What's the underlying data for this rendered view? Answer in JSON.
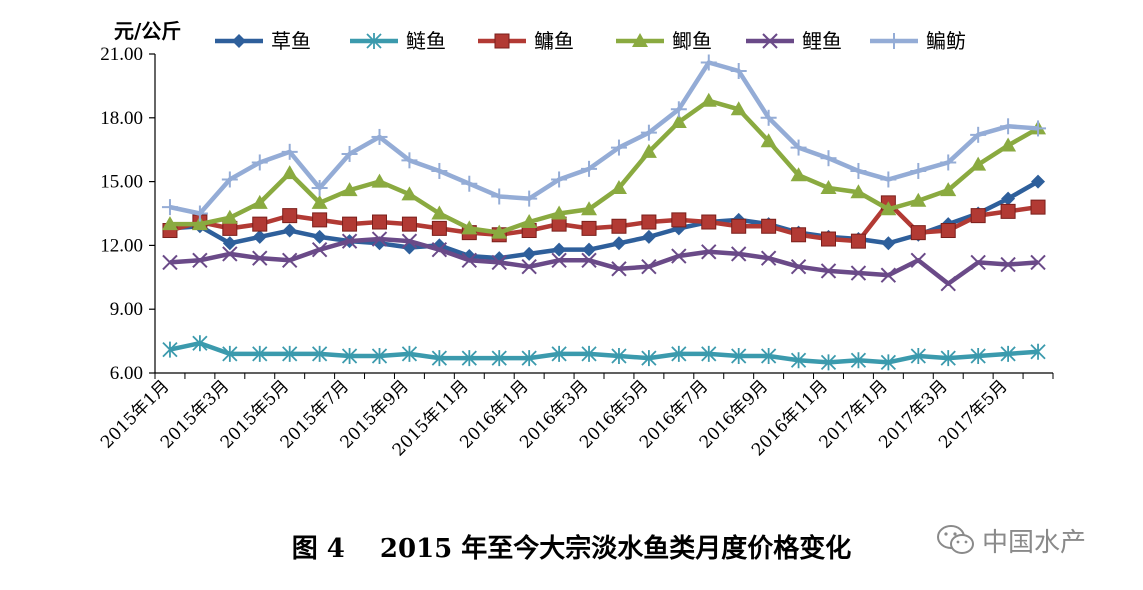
{
  "chart_data": {
    "type": "line",
    "unit_label": "元/公斤",
    "ylim": [
      6.0,
      21.0
    ],
    "yticks": [
      "21.00",
      "18.00",
      "15.00",
      "12.00",
      "9.00",
      "6.00"
    ],
    "ytick_values": [
      21,
      18,
      15,
      12,
      9,
      6
    ],
    "grid": false,
    "legend": "top",
    "x": [
      "2015年1月",
      "2015年2月",
      "2015年3月",
      "2015年4月",
      "2015年5月",
      "2015年6月",
      "2015年7月",
      "2015年8月",
      "2015年9月",
      "2015年10月",
      "2015年11月",
      "2015年12月",
      "2016年1月",
      "2016年2月",
      "2016年3月",
      "2016年4月",
      "2016年5月",
      "2016年6月",
      "2016年7月",
      "2016年8月",
      "2016年9月",
      "2016年10月",
      "2016年11月",
      "2016年12月",
      "2017年1月",
      "2017年2月",
      "2017年3月",
      "2017年4月",
      "2017年5月",
      "2017年6月"
    ],
    "xtick_labels": [
      "2015年1月",
      "2015年3月",
      "2015年5月",
      "2015年7月",
      "2015年9月",
      "2015年11月",
      "2016年1月",
      "2016年3月",
      "2016年5月",
      "2016年7月",
      "2016年9月",
      "2016年11月",
      "2017年1月",
      "2017年3月",
      "2017年5月"
    ],
    "series": [
      {
        "name": "草鱼",
        "color": "#2e5f9b",
        "marker": "diamond",
        "values": [
          12.8,
          12.9,
          12.1,
          12.4,
          12.7,
          12.4,
          12.2,
          12.1,
          11.9,
          12.0,
          11.5,
          11.4,
          11.6,
          11.8,
          11.8,
          12.1,
          12.4,
          12.8,
          13.1,
          13.2,
          13.0,
          12.6,
          12.4,
          12.3,
          12.1,
          12.5,
          13.0,
          13.5,
          14.2,
          15.0
        ]
      },
      {
        "name": "鲢鱼",
        "color": "#3b9aad",
        "marker": "asterisk",
        "values": [
          7.1,
          7.4,
          6.9,
          6.9,
          6.9,
          6.9,
          6.8,
          6.8,
          6.9,
          6.7,
          6.7,
          6.7,
          6.7,
          6.9,
          6.9,
          6.8,
          6.7,
          6.9,
          6.9,
          6.8,
          6.8,
          6.6,
          6.5,
          6.6,
          6.5,
          6.8,
          6.7,
          6.8,
          6.9,
          7.0
        ]
      },
      {
        "name": "鳙鱼",
        "color": "#b23a34",
        "marker": "square",
        "values": [
          12.7,
          13.1,
          12.8,
          13.0,
          13.4,
          13.2,
          13.0,
          13.1,
          13.0,
          12.8,
          12.6,
          12.5,
          12.7,
          13.0,
          12.8,
          12.9,
          13.1,
          13.2,
          13.1,
          12.9,
          12.9,
          12.5,
          12.3,
          12.2,
          14.0,
          12.6,
          12.7,
          13.4,
          13.6,
          13.8
        ]
      },
      {
        "name": "鲫鱼",
        "color": "#8aaa40",
        "marker": "triangle",
        "values": [
          13.0,
          13.0,
          13.3,
          14.0,
          15.4,
          14.0,
          14.6,
          15.0,
          14.4,
          13.5,
          12.8,
          12.6,
          13.1,
          13.5,
          13.7,
          14.7,
          16.4,
          17.8,
          18.8,
          18.4,
          16.9,
          15.3,
          14.7,
          14.5,
          13.7,
          14.1,
          14.6,
          15.8,
          16.7,
          17.5
        ]
      },
      {
        "name": "鲤鱼",
        "color": "#6a4a88",
        "marker": "cross",
        "values": [
          11.2,
          11.3,
          11.6,
          11.4,
          11.3,
          11.8,
          12.2,
          12.3,
          12.2,
          11.8,
          11.3,
          11.2,
          11.0,
          11.3,
          11.3,
          10.9,
          11.0,
          11.5,
          11.7,
          11.6,
          11.4,
          11.0,
          10.8,
          10.7,
          10.6,
          11.3,
          10.2,
          11.2,
          11.1,
          11.2
        ]
      },
      {
        "name": "鳊鲂",
        "color": "#94acd6",
        "marker": "plus",
        "values": [
          13.8,
          13.5,
          15.1,
          15.9,
          16.4,
          14.7,
          16.3,
          17.1,
          16.0,
          15.5,
          14.9,
          14.3,
          14.2,
          15.1,
          15.6,
          16.6,
          17.3,
          18.4,
          20.6,
          20.2,
          18.0,
          16.6,
          16.1,
          15.5,
          15.1,
          15.5,
          15.9,
          17.2,
          17.6,
          17.5
        ]
      }
    ]
  },
  "caption": "图 4　 2015 年至今大宗淡水鱼类月度价格变化",
  "watermark": "中国水产"
}
